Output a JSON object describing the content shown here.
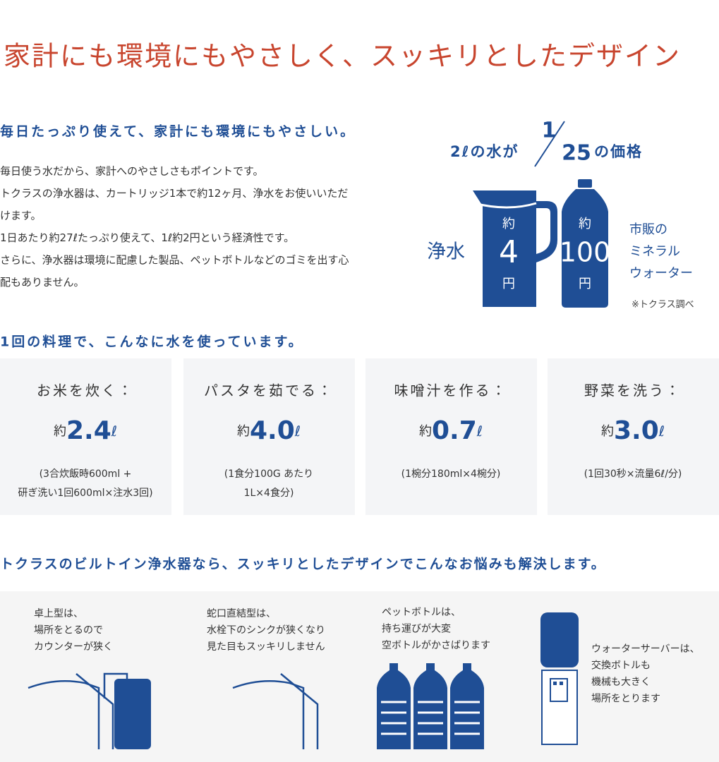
{
  "title": "家計にも環境にもやさしく、スッキリとしたデザイン",
  "section1": {
    "heading": "毎日たっぷり使えて、家計にも環境にもやさしい。",
    "paragraph": [
      "毎日使う水だから、家計へのやさしさもポイントです。",
      "トクラスの浄水器は、カートリッジ1本で約12ヶ月、浄水をお使いいただ",
      "けます。",
      "1日あたり約27ℓたっぷり使えて、1ℓ約2円という経済性です。",
      "さらに、浄水器は環境に配慮した製品、ペットボトルなどのゴミを出す心",
      "配もありません。"
    ]
  },
  "infographic": {
    "lead": "2ℓの水が",
    "numerator": "1",
    "denominator": "25",
    "suffix": "の価格",
    "filtered_label": "浄水",
    "filtered_price": {
      "prefix": "約",
      "amount": "4",
      "unit": "円"
    },
    "bottled_price": {
      "prefix": "約",
      "amount": "100",
      "unit": "円"
    },
    "bottled_label": [
      "市販の",
      "ミネラル",
      "ウォーター"
    ],
    "note": "※トクラス調べ"
  },
  "section2": {
    "heading": "1回の料理で、こんなに水を使っています。",
    "cards": [
      {
        "label": "お米を炊く：",
        "prefix": "約",
        "amount": "2.4",
        "unit": "ℓ",
        "note": [
          "(3合炊飯時600ml +",
          "研ぎ洗い1回600ml×注水3回)"
        ]
      },
      {
        "label": "パスタを茹でる：",
        "prefix": "約",
        "amount": "4.0",
        "unit": "ℓ",
        "note": [
          "(1食分100G あたり",
          "1L×4食分)"
        ]
      },
      {
        "label": "味噌汁を作る：",
        "prefix": "約",
        "amount": "0.7",
        "unit": "ℓ",
        "note": [
          "(1椀分180ml×4椀分)"
        ]
      },
      {
        "label": "野菜を洗う：",
        "prefix": "約",
        "amount": "3.0",
        "unit": "ℓ",
        "note": [
          "(1回30秒×流量6ℓ/分)"
        ]
      }
    ]
  },
  "section3": {
    "heading": "トクラスのビルトイン浄水器なら、スッキリとしたデザインでこんなお悩みも解決します。",
    "items": [
      {
        "text": [
          "卓上型は、",
          "場所をとるので",
          "カウンターが狭く"
        ]
      },
      {
        "text": [
          "蛇口直結型は、",
          "水栓下のシンクが狭くなり",
          "見た目もスッキリしません"
        ]
      },
      {
        "text": [
          "ペットボトルは、",
          "持ち運びが大変",
          "空ボトルがかさばります"
        ]
      },
      {
        "text": [
          "ウォーターサーバーは、",
          "交換ボトルも",
          "機械も大きく",
          "場所をとります"
        ]
      }
    ]
  }
}
